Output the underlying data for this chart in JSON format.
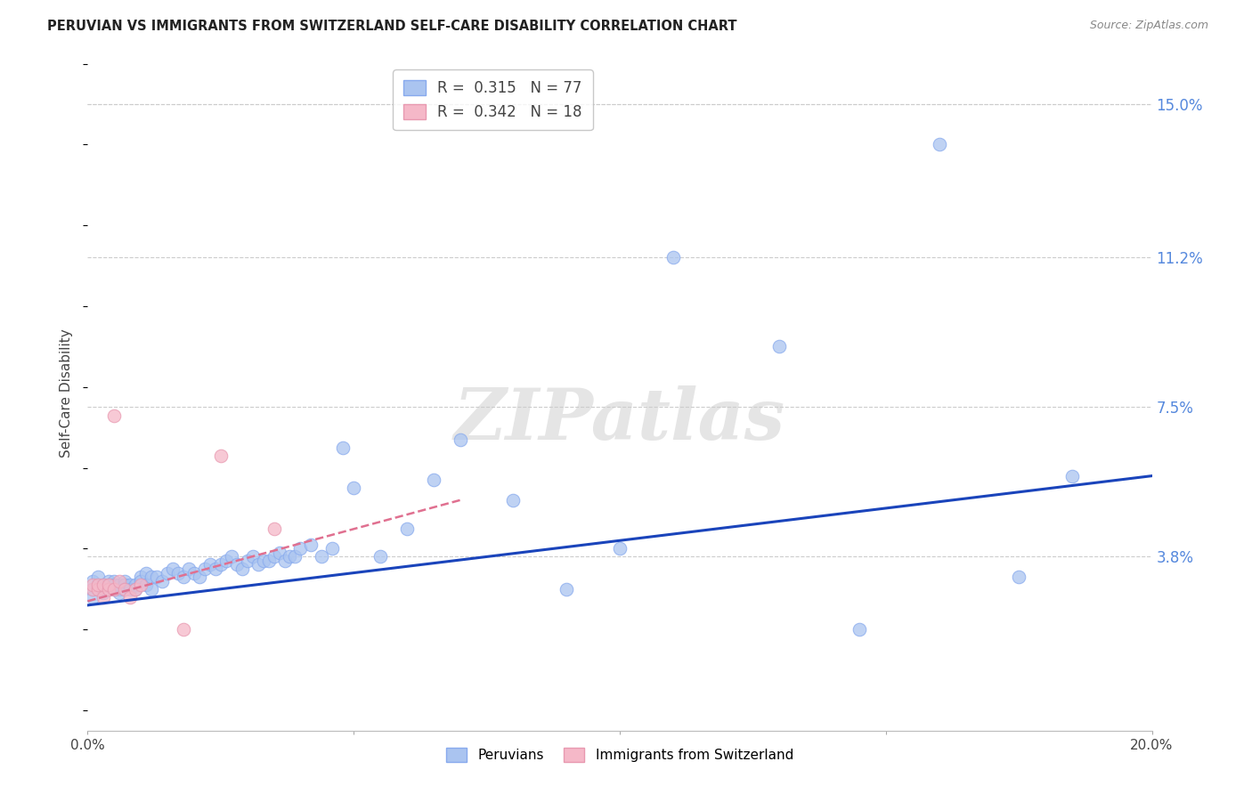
{
  "title": "PERUVIAN VS IMMIGRANTS FROM SWITZERLAND SELF-CARE DISABILITY CORRELATION CHART",
  "source": "Source: ZipAtlas.com",
  "ylabel": "Self-Care Disability",
  "xlim": [
    0.0,
    0.2
  ],
  "ylim": [
    -0.005,
    0.162
  ],
  "plot_ylim": [
    0.0,
    0.15
  ],
  "ytick_positions": [
    0.038,
    0.075,
    0.112,
    0.15
  ],
  "ytick_labels": [
    "3.8%",
    "7.5%",
    "11.2%",
    "15.0%"
  ],
  "peruvian_color": "#aac4f0",
  "swiss_color": "#f5b8c8",
  "peruvian_line_color": "#1a44bb",
  "swiss_line_color": "#e07090",
  "R_peruvian": 0.315,
  "N_peruvian": 77,
  "R_swiss": 0.342,
  "N_swiss": 18,
  "watermark": "ZIPatlas",
  "peruvian_x": [
    0.001,
    0.001,
    0.001,
    0.002,
    0.002,
    0.002,
    0.003,
    0.003,
    0.003,
    0.004,
    0.004,
    0.004,
    0.005,
    0.005,
    0.005,
    0.006,
    0.006,
    0.006,
    0.007,
    0.007,
    0.007,
    0.008,
    0.008,
    0.009,
    0.009,
    0.01,
    0.01,
    0.011,
    0.011,
    0.012,
    0.012,
    0.013,
    0.014,
    0.015,
    0.016,
    0.017,
    0.018,
    0.019,
    0.02,
    0.021,
    0.022,
    0.023,
    0.024,
    0.025,
    0.026,
    0.027,
    0.028,
    0.029,
    0.03,
    0.031,
    0.032,
    0.033,
    0.034,
    0.035,
    0.036,
    0.037,
    0.038,
    0.039,
    0.04,
    0.042,
    0.044,
    0.046,
    0.048,
    0.05,
    0.055,
    0.06,
    0.065,
    0.07,
    0.08,
    0.09,
    0.1,
    0.11,
    0.13,
    0.145,
    0.16,
    0.175,
    0.185
  ],
  "peruvian_y": [
    0.03,
    0.028,
    0.032,
    0.031,
    0.03,
    0.033,
    0.029,
    0.031,
    0.03,
    0.032,
    0.031,
    0.03,
    0.03,
    0.032,
    0.031,
    0.03,
    0.029,
    0.031,
    0.032,
    0.031,
    0.03,
    0.031,
    0.03,
    0.031,
    0.03,
    0.033,
    0.032,
    0.034,
    0.031,
    0.033,
    0.03,
    0.033,
    0.032,
    0.034,
    0.035,
    0.034,
    0.033,
    0.035,
    0.034,
    0.033,
    0.035,
    0.036,
    0.035,
    0.036,
    0.037,
    0.038,
    0.036,
    0.035,
    0.037,
    0.038,
    0.036,
    0.037,
    0.037,
    0.038,
    0.039,
    0.037,
    0.038,
    0.038,
    0.04,
    0.041,
    0.038,
    0.04,
    0.065,
    0.055,
    0.038,
    0.045,
    0.057,
    0.067,
    0.052,
    0.03,
    0.04,
    0.112,
    0.09,
    0.02,
    0.14,
    0.033,
    0.058
  ],
  "swiss_x": [
    0.001,
    0.001,
    0.002,
    0.002,
    0.003,
    0.003,
    0.004,
    0.004,
    0.005,
    0.005,
    0.006,
    0.007,
    0.008,
    0.009,
    0.01,
    0.018,
    0.025,
    0.035
  ],
  "swiss_y": [
    0.03,
    0.031,
    0.03,
    0.031,
    0.028,
    0.031,
    0.03,
    0.031,
    0.03,
    0.073,
    0.032,
    0.03,
    0.028,
    0.03,
    0.031,
    0.02,
    0.063,
    0.045
  ],
  "peruvian_trend_x0": 0.0,
  "peruvian_trend_y0": 0.026,
  "peruvian_trend_x1": 0.2,
  "peruvian_trend_y1": 0.058,
  "swiss_trend_x0": 0.0,
  "swiss_trend_y0": 0.027,
  "swiss_trend_x1": 0.07,
  "swiss_trend_y1": 0.052
}
